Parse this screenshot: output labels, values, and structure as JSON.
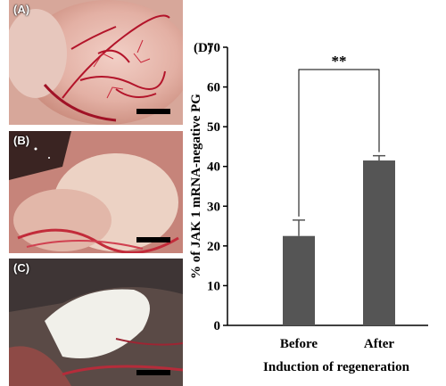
{
  "panels": [
    {
      "label": "(A)",
      "description_icon": "tissue-vascularized-photo"
    },
    {
      "label": "(B)",
      "description_icon": "tissue-pale-photo"
    },
    {
      "label": "(C)",
      "description_icon": "tissue-white-photo"
    }
  ],
  "chart_data": {
    "type": "bar",
    "panel_label": "(D)",
    "categories": [
      "Before",
      "After"
    ],
    "values": [
      22.5,
      41.5
    ],
    "errors": [
      4.0,
      1.2
    ],
    "xlabel": "Induction of regeneration",
    "ylabel": "% of JAK 1 mRNA-negative PG",
    "ylim": [
      0,
      70
    ],
    "yticks": [
      0,
      10,
      20,
      30,
      40,
      50,
      60,
      70
    ],
    "significance": "**",
    "bar_color": "#555555",
    "grid": false
  }
}
